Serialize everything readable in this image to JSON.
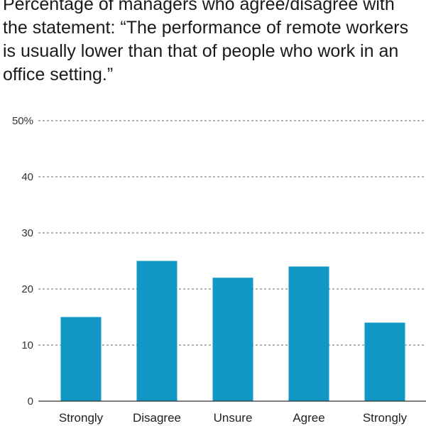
{
  "title": "Percentage of managers who agree/disagree with the statement: “The performance of remote workers is usually lower than that of people who work in an office setting.”",
  "colors": {
    "bar": "#1197c3",
    "grid": "#666666",
    "axis": "#333333"
  },
  "chart_data": {
    "type": "bar",
    "categories": [
      "Strongly",
      "Disagree",
      "Unsure",
      "Agree",
      "Strongly"
    ],
    "values": [
      15,
      25,
      22,
      24,
      14
    ],
    "title": "Percentage of managers who agree/disagree with the statement: “The performance of remote workers is usually lower than that of people who work in an office setting.”",
    "xlabel": "",
    "ylabel": "",
    "ylim": [
      0,
      50
    ],
    "yticks": [
      0,
      10,
      20,
      30,
      40,
      50
    ],
    "ytick_labels": [
      "0",
      "10",
      "20",
      "30",
      "40",
      "50%"
    ],
    "grid": true,
    "legend": "none"
  }
}
